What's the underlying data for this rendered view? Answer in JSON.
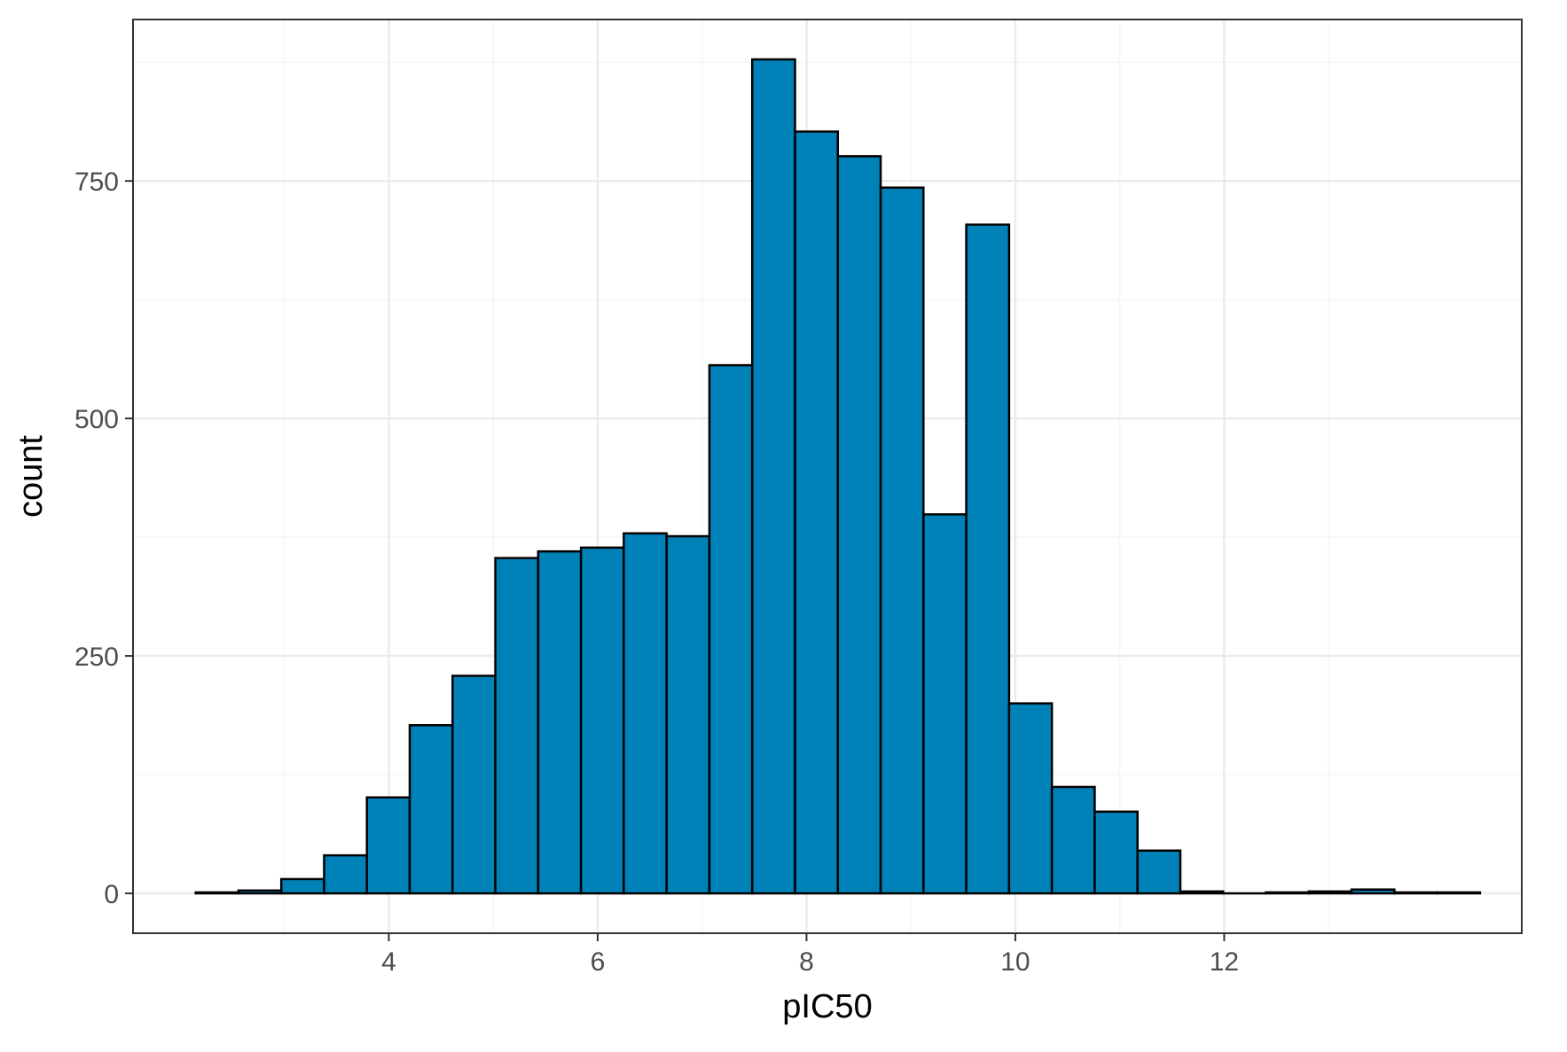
{
  "chart_data": {
    "type": "bar",
    "subtype": "histogram",
    "title": "",
    "xlabel": "pIC50",
    "ylabel": "count",
    "xlim": [
      1.55,
      14.85
    ],
    "ylim": [
      -42,
      920
    ],
    "x_ticks": [
      4,
      6,
      8,
      10,
      12
    ],
    "x_tick_labels": [
      "4",
      "6",
      "8",
      "10",
      "12"
    ],
    "y_ticks": [
      0,
      250,
      500,
      750
    ],
    "y_tick_labels": [
      "0",
      "250",
      "500",
      "750"
    ],
    "bin_width": 0.41,
    "bin_start": 2.15,
    "bins": [
      {
        "x0": 2.15,
        "x1": 2.56,
        "count": 1
      },
      {
        "x0": 2.56,
        "x1": 2.97,
        "count": 3
      },
      {
        "x0": 2.97,
        "x1": 3.38,
        "count": 15
      },
      {
        "x0": 3.38,
        "x1": 3.79,
        "count": 40
      },
      {
        "x0": 3.79,
        "x1": 4.2,
        "count": 101
      },
      {
        "x0": 4.2,
        "x1": 4.61,
        "count": 177
      },
      {
        "x0": 4.61,
        "x1": 5.02,
        "count": 229
      },
      {
        "x0": 5.02,
        "x1": 5.43,
        "count": 353
      },
      {
        "x0": 5.43,
        "x1": 5.84,
        "count": 360
      },
      {
        "x0": 5.84,
        "x1": 6.25,
        "count": 364
      },
      {
        "x0": 6.25,
        "x1": 6.66,
        "count": 379
      },
      {
        "x0": 6.66,
        "x1": 7.07,
        "count": 376
      },
      {
        "x0": 7.07,
        "x1": 7.48,
        "count": 556
      },
      {
        "x0": 7.48,
        "x1": 7.89,
        "count": 878
      },
      {
        "x0": 7.89,
        "x1": 8.3,
        "count": 802
      },
      {
        "x0": 8.3,
        "x1": 8.71,
        "count": 776
      },
      {
        "x0": 8.71,
        "x1": 9.12,
        "count": 743
      },
      {
        "x0": 9.12,
        "x1": 9.53,
        "count": 399
      },
      {
        "x0": 9.53,
        "x1": 9.94,
        "count": 704
      },
      {
        "x0": 9.94,
        "x1": 10.35,
        "count": 200
      },
      {
        "x0": 10.35,
        "x1": 10.76,
        "count": 112
      },
      {
        "x0": 10.76,
        "x1": 11.17,
        "count": 86
      },
      {
        "x0": 11.17,
        "x1": 11.58,
        "count": 45
      },
      {
        "x0": 11.58,
        "x1": 11.99,
        "count": 2
      },
      {
        "x0": 11.99,
        "x1": 12.4,
        "count": 0
      },
      {
        "x0": 12.4,
        "x1": 12.81,
        "count": 1
      },
      {
        "x0": 12.81,
        "x1": 13.22,
        "count": 2
      },
      {
        "x0": 13.22,
        "x1": 13.63,
        "count": 4
      },
      {
        "x0": 13.63,
        "x1": 14.04,
        "count": 1
      },
      {
        "x0": 14.04,
        "x1": 14.45,
        "count": 1
      }
    ],
    "grid": true,
    "legend": "none",
    "colors": {
      "bar_fill": "#0082b9",
      "bar_stroke": "#000000",
      "panel_border": "#333333",
      "grid_major": "#ebebeb",
      "grid_minor": "#f5f5f5",
      "tick_text": "#4d4d4d",
      "axis_title": "#000000"
    }
  }
}
